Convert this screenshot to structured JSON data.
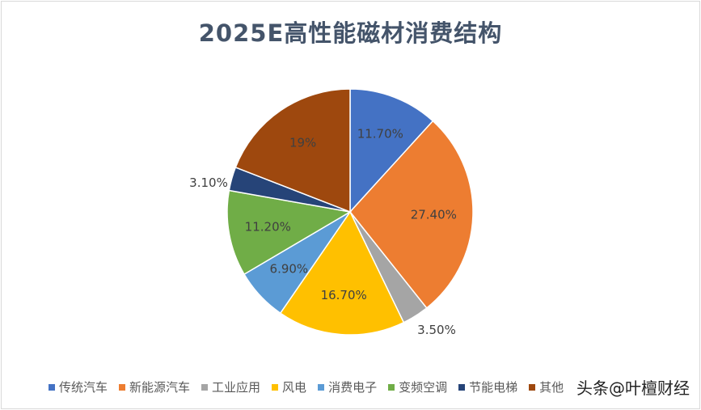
{
  "chart_data": {
    "type": "pie",
    "title": "2025E高性能磁材消费结构",
    "categories": [
      "传统汽车",
      "新能源汽车",
      "工业应用",
      "风电",
      "消费电子",
      "变频空调",
      "节能电梯",
      "其他"
    ],
    "values": [
      11.7,
      27.4,
      3.5,
      16.7,
      6.9,
      11.2,
      3.1,
      19
    ],
    "labels": [
      "11.70%",
      "27.40%",
      "3.50%",
      "16.70%",
      "6.90%",
      "11.20%",
      "3.10%",
      "19%"
    ],
    "colors": [
      "#4472c4",
      "#ed7d31",
      "#a5a5a5",
      "#ffc000",
      "#5b9bd5",
      "#70ad47",
      "#264478",
      "#9e480e"
    ],
    "legend": "bottom"
  },
  "watermark": "头条@叶檀财经"
}
